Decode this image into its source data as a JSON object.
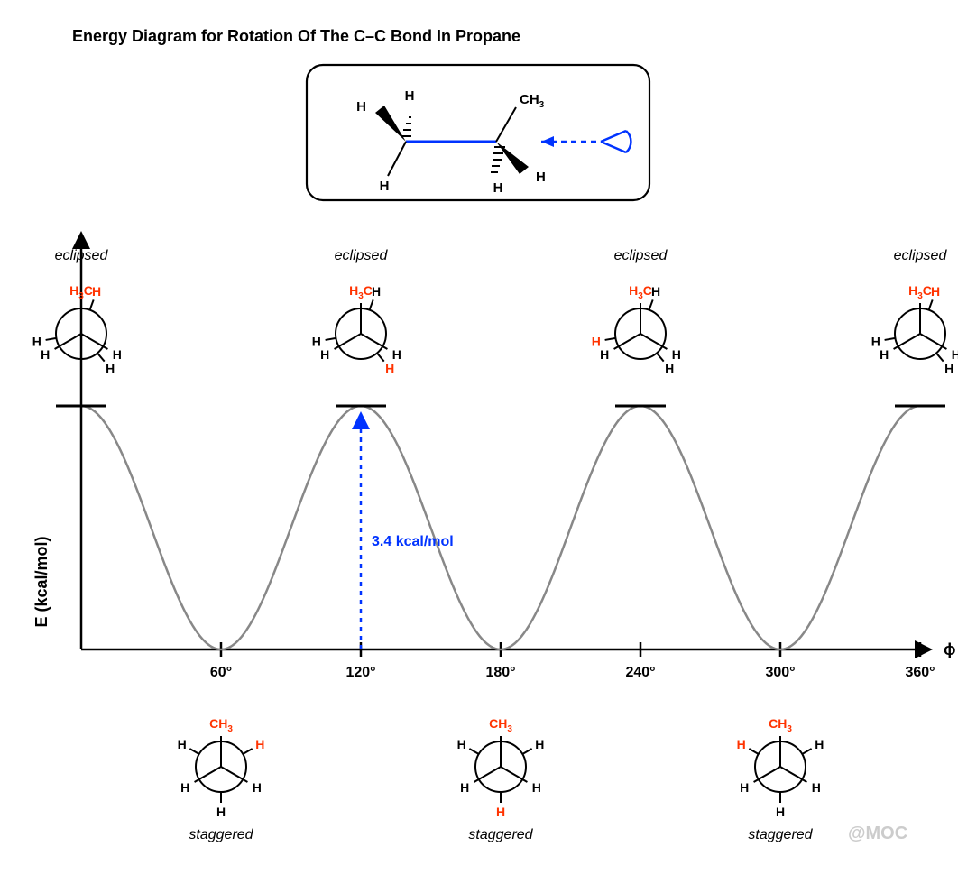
{
  "title": "Energy Diagram for Rotation Of The C–C Bond In Propane",
  "y_axis_label": "E (kcal/mol)",
  "x_axis_label": "ϕ",
  "barrier_label": "3.4 kcal/mol",
  "watermark": "@MOC",
  "colors": {
    "curve": "#888888",
    "axes": "#000000",
    "highlight_red": "#ff3300",
    "highlight_blue": "#0033ff",
    "watermark": "#cccccc",
    "black": "#000000"
  },
  "chart": {
    "type": "line",
    "x_range": [
      0,
      360
    ],
    "y_range_kcal": [
      0,
      3.4
    ],
    "period_deg": 120,
    "maxima_deg": [
      0,
      120,
      240,
      360
    ],
    "minima_deg": [
      60,
      180,
      300
    ],
    "ticks_deg": [
      60,
      120,
      180,
      240,
      300,
      360
    ],
    "tick_labels": [
      "60°",
      "120°",
      "180°",
      "240°",
      "300°",
      "360°"
    ],
    "barrier_arrow_x_deg": 120,
    "curve_stroke_width": 2.5
  },
  "maxima_label": "eclipsed",
  "minima_label": "staggered",
  "eclipsed": [
    {
      "x_deg": 0,
      "red_back_angle_deg": 0
    },
    {
      "x_deg": 120,
      "red_back_angle_deg": 120
    },
    {
      "x_deg": 240,
      "red_back_angle_deg": 240
    },
    {
      "x_deg": 360,
      "red_back_angle_deg": 0
    }
  ],
  "staggered": [
    {
      "x_deg": 60,
      "red_back_angle_deg": 60
    },
    {
      "x_deg": 180,
      "red_back_angle_deg": 180
    },
    {
      "x_deg": 300,
      "red_back_angle_deg": 300
    }
  ],
  "newman": {
    "circle_r": 28,
    "front_bond_len": 34,
    "back_bond_start": 28,
    "back_bond_end": 40,
    "stroke_width": 2
  },
  "ch3_label": "CH",
  "ch3_sub": "3",
  "h_label": "H",
  "header_molecule": {
    "labels": [
      "H",
      "H",
      "H",
      "H",
      "H",
      "CH",
      "3"
    ]
  }
}
